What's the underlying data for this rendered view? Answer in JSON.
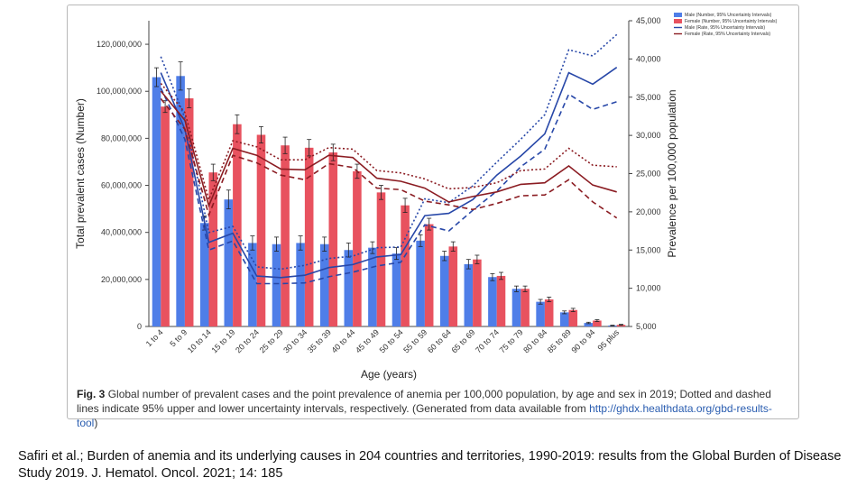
{
  "chart_data": {
    "type": "bar+line",
    "xlabel": "Age (years)",
    "ylabel_left": "Total prevalent cases (Number)",
    "ylabel_right": "Prevalence per 100,000 population",
    "ylim_left": [
      0,
      130000000
    ],
    "ylim_right": [
      5000,
      45000
    ],
    "left_ticks": [
      "0",
      "20,000,000",
      "40,000,000",
      "60,000,000",
      "80,000,000",
      "100,000,000",
      "120,000,000"
    ],
    "right_ticks": [
      "5,000",
      "10,000",
      "15,000",
      "20,000",
      "25,000",
      "30,000",
      "35,000",
      "40,000",
      "45,000"
    ],
    "categories": [
      "1 to 4",
      "5 to 9",
      "10 to 14",
      "15 to 19",
      "20 to 24",
      "25 to 29",
      "30 to 34",
      "35 to 39",
      "40 to 44",
      "45 to 49",
      "50 to 54",
      "55 to 59",
      "60 to 64",
      "65 to 69",
      "70 to 74",
      "75 to 79",
      "80 to 84",
      "85 to 89",
      "90 to 94",
      "95 plus"
    ],
    "bars": [
      {
        "name": "Male (Number, 95% Uncertainty Intervals)",
        "color": "#4f7ee8",
        "values": [
          106000000,
          106500000,
          44000000,
          54000000,
          35500000,
          35000000,
          35500000,
          35000000,
          32500000,
          33500000,
          31000000,
          36500000,
          30000000,
          26500000,
          21000000,
          16000000,
          10500000,
          6000000,
          1500000,
          400000
        ],
        "err": [
          4000000,
          6000000,
          3000000,
          4000000,
          3000000,
          3000000,
          3000000,
          3000000,
          3000000,
          2500000,
          2500000,
          2500000,
          2000000,
          2000000,
          1500000,
          1200000,
          1000000,
          600000,
          300000,
          150000
        ]
      },
      {
        "name": "Female (Number, 95% Uncertainty Intervals)",
        "color": "#e8525f",
        "values": [
          93500000,
          97000000,
          65500000,
          86000000,
          81500000,
          77000000,
          76000000,
          74000000,
          66000000,
          57000000,
          51500000,
          43500000,
          34000000,
          28500000,
          21500000,
          16000000,
          11500000,
          7000000,
          2500000,
          700000
        ],
        "err": [
          2500000,
          4000000,
          3500000,
          4000000,
          3500000,
          3500000,
          3500000,
          3500000,
          3000000,
          3000000,
          3000000,
          2500000,
          2000000,
          1800000,
          1500000,
          1200000,
          1000000,
          700000,
          400000,
          200000
        ]
      }
    ],
    "series": [
      {
        "name": "Male (Rate, 95% Uncertainty Intervals)",
        "color": "#2747a8",
        "values": [
          38200,
          30800,
          16000,
          17200,
          11600,
          11400,
          11700,
          12700,
          13100,
          14100,
          14400,
          19500,
          19800,
          21600,
          24800,
          27300,
          30200,
          38200,
          36700,
          38900
        ],
        "upper": [
          40300,
          32300,
          17300,
          18100,
          12800,
          12500,
          13000,
          13900,
          14200,
          15300,
          15400,
          21700,
          21200,
          23400,
          26500,
          29500,
          32700,
          41200,
          40400,
          43200
        ],
        "lower": [
          36200,
          29500,
          15000,
          16200,
          10600,
          10600,
          10700,
          11500,
          12100,
          12900,
          13400,
          18300,
          17500,
          20200,
          22700,
          25900,
          28200,
          35400,
          33400,
          34400
        ]
      },
      {
        "name": "Female (Rate, 95% Uncertainty Intervals)",
        "color": "#8b1c22",
        "values": [
          35800,
          32000,
          20800,
          28300,
          27400,
          25600,
          25500,
          27400,
          27100,
          24400,
          24000,
          23100,
          21300,
          22000,
          22600,
          23600,
          23800,
          26000,
          23500,
          22600
        ],
        "upper": [
          36800,
          33000,
          21600,
          29300,
          28500,
          26800,
          26800,
          28400,
          28200,
          25400,
          25100,
          24300,
          23000,
          23200,
          23800,
          25400,
          25600,
          28300,
          26100,
          25900
        ],
        "lower": [
          34800,
          30800,
          19600,
          27400,
          26400,
          24800,
          24200,
          26300,
          25800,
          23100,
          22900,
          21400,
          20900,
          20300,
          21100,
          22100,
          22200,
          24200,
          21300,
          19200
        ]
      }
    ]
  },
  "legend": [
    {
      "label": "Male (Number, 95% Uncertainty Intervals)",
      "color": "#4f7ee8",
      "kind": "box"
    },
    {
      "label": "Female (Number, 95% Uncertainty Intervals)",
      "color": "#e8525f",
      "kind": "box"
    },
    {
      "label": "Male (Rate, 95% Uncertainty Intervals)",
      "color": "#2747a8",
      "kind": "line"
    },
    {
      "label": "Female (Rate, 95% Uncertainty Intervals)",
      "color": "#8b1c22",
      "kind": "line"
    }
  ],
  "caption": {
    "label": "Fig. 3",
    "text": "Global number of prevalent cases and the point prevalence of anemia per 100,000 population, by age and sex in 2019; Dotted and dashed lines indicate 95% upper and lower uncertainty intervals, respectively. (Generated from data available from ",
    "link": "http://ghdx.healthdata.org/gbd-results-tool",
    "end": ")"
  },
  "citation": "Safiri et al.; Burden of anemia and its underlying causes in 204 countries and territories, 1990-2019: results from the Global Burden of Disease Study 2019. J. Hematol. Oncol. 2021; 14: 185"
}
